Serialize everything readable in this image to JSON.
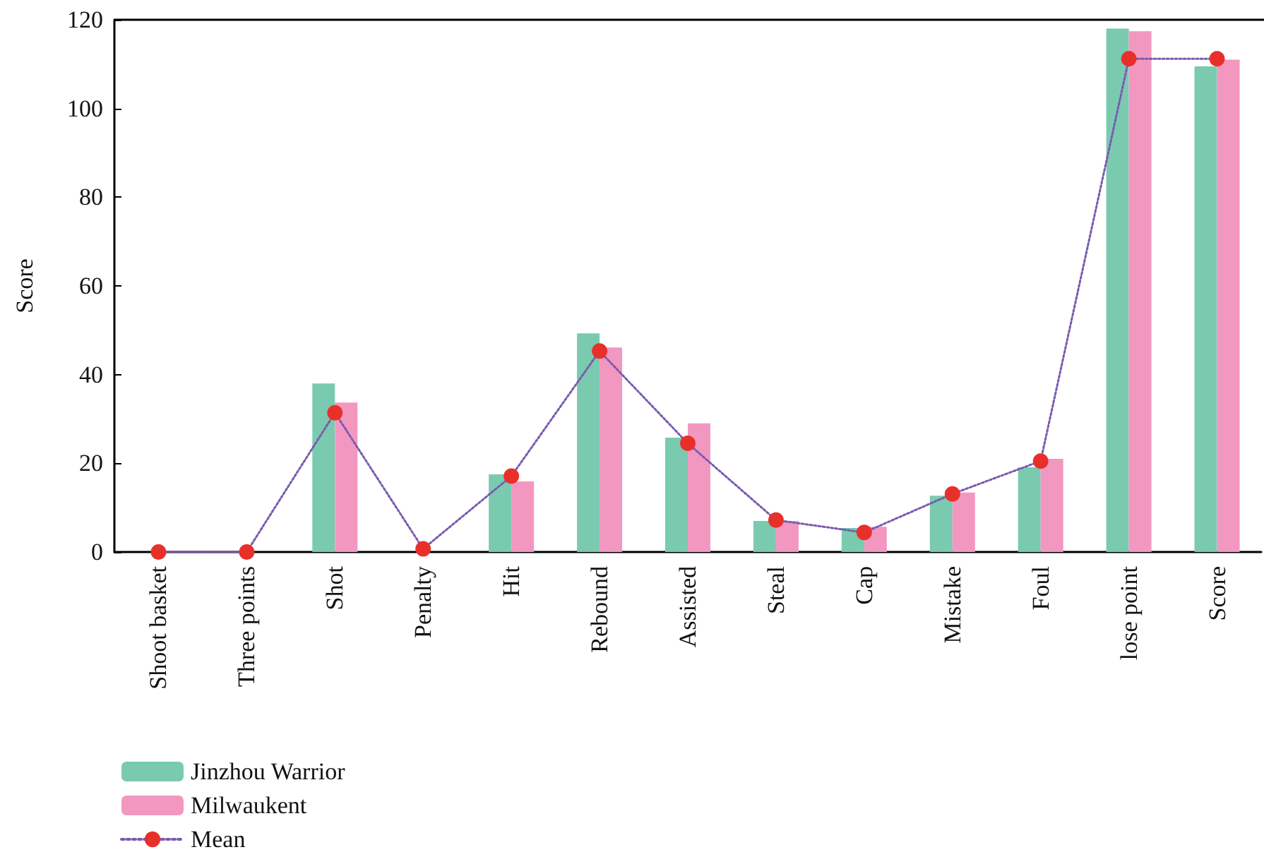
{
  "chart_data": {
    "type": "bar",
    "ylabel": "Score",
    "categories": [
      "Shoot basket",
      "Three points",
      "Shot",
      "Penalty",
      "Hit",
      "Rebound",
      "Assisted",
      "Steal",
      "Cap",
      "Mistake",
      "Foul",
      "lose point",
      "Score"
    ],
    "series": [
      {
        "name": "Jinzhou Warrior",
        "color": "#7acab0",
        "values": [
          0,
          0,
          38,
          0,
          17.5,
          49.3,
          25.8,
          7,
          5.4,
          12.7,
          19.1,
          118,
          109.5
        ]
      },
      {
        "name": "Milwaukent",
        "color": "#f298c0",
        "values": [
          0,
          0,
          33.7,
          0,
          15.9,
          46.1,
          29,
          7,
          5.7,
          13.4,
          21,
          117.4,
          111
        ]
      },
      {
        "name": "Mean",
        "type": "line",
        "color": "#e8302a",
        "marker": "circle",
        "line_style": "dotted",
        "values": [
          0,
          0,
          31.4,
          0.7,
          17.1,
          45.3,
          24.5,
          7.2,
          4.4,
          13.1,
          20.5,
          111.2,
          111.2
        ]
      }
    ],
    "ylim": [
      0,
      120
    ],
    "yticks": [
      0,
      20,
      40,
      60,
      80,
      100,
      120
    ],
    "grid": false,
    "legend": "bottom left"
  }
}
